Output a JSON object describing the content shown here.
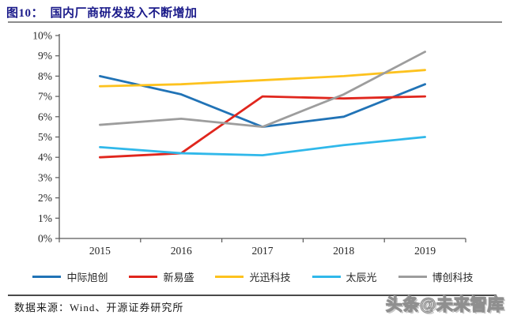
{
  "header": {
    "title": "图10：  国内厂商研发投入不断增加"
  },
  "chart_data": {
    "type": "line",
    "title": "国内厂商研发投入不断增加",
    "categories": [
      "2015",
      "2016",
      "2017",
      "2018",
      "2019"
    ],
    "series": [
      {
        "name": "中际旭创",
        "color": "#2173B6",
        "values": [
          8.0,
          7.1,
          5.5,
          6.0,
          7.6
        ]
      },
      {
        "name": "新易盛",
        "color": "#E0261D",
        "values": [
          4.0,
          4.2,
          7.0,
          6.9,
          7.0
        ]
      },
      {
        "name": "光迅科技",
        "color": "#FDC21E",
        "values": [
          7.5,
          7.6,
          7.8,
          8.0,
          8.3
        ]
      },
      {
        "name": "太辰光",
        "color": "#30B8EA",
        "values": [
          4.5,
          4.2,
          4.1,
          4.6,
          5.0
        ]
      },
      {
        "name": "博创科技",
        "color": "#9D9D9D",
        "values": [
          5.6,
          5.9,
          5.5,
          7.1,
          9.2
        ]
      }
    ],
    "ylim": [
      0,
      10
    ],
    "y_tick_labels": [
      "0%",
      "1%",
      "2%",
      "3%",
      "4%",
      "5%",
      "6%",
      "7%",
      "8%",
      "9%",
      "10%"
    ],
    "grid": false,
    "legend_position": "bottom"
  },
  "footer": {
    "source": "数据来源：Wind、开源证券研究所",
    "watermark": "头条@未来智库"
  },
  "colors": {
    "title_text": "#1B1B8A",
    "axis": "#595959",
    "tick_text": "#262626"
  }
}
